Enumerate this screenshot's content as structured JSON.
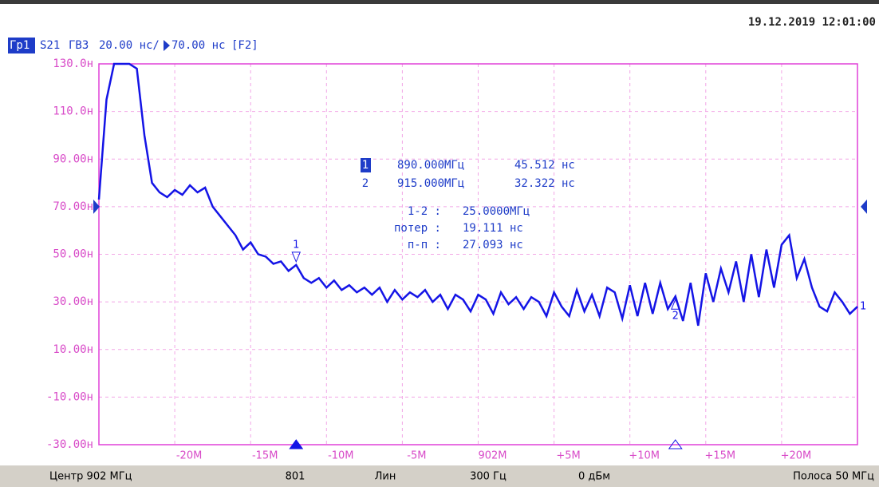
{
  "date": "19.12.2019 12:01:00",
  "header": {
    "trace": "Гр1",
    "parameter": "S21",
    "format": "ГВЗ",
    "scale": "20.00 нс/",
    "reference": "70.00 нс",
    "key": "[F2]"
  },
  "chart_data": {
    "type": "line",
    "xlim": [
      877,
      927
    ],
    "xticks": [
      {
        "value": 882,
        "label": "-20M"
      },
      {
        "value": 887,
        "label": "-15M"
      },
      {
        "value": 892,
        "label": "-10M"
      },
      {
        "value": 897,
        "label": "-5M"
      },
      {
        "value": 902,
        "label": "902M"
      },
      {
        "value": 907,
        "label": "+5M"
      },
      {
        "value": 912,
        "label": "+10M"
      },
      {
        "value": 917,
        "label": "+15M"
      },
      {
        "value": 922,
        "label": "+20M"
      }
    ],
    "ylim": [
      -30,
      130
    ],
    "yticks": [
      {
        "value": 130,
        "label": "130.0н"
      },
      {
        "value": 110,
        "label": "110.0н"
      },
      {
        "value": 90,
        "label": "90.00н"
      },
      {
        "value": 70,
        "label": "70.00н"
      },
      {
        "value": 50,
        "label": "50.00н"
      },
      {
        "value": 30,
        "label": "30.00н"
      },
      {
        "value": 10,
        "label": "10.00н"
      },
      {
        "value": -10,
        "label": "-10.00н"
      },
      {
        "value": -30,
        "label": "-30.00н"
      }
    ],
    "grid": true,
    "color": "#1414e6",
    "reference": 70,
    "channel": "1",
    "x": [
      877,
      877.5,
      878,
      878.5,
      879,
      879.5,
      880,
      880.5,
      881,
      881.5,
      882,
      882.5,
      883,
      883.5,
      884,
      884.5,
      885,
      885.5,
      886,
      886.5,
      887,
      887.5,
      888,
      888.5,
      889,
      889.5,
      890,
      890.5,
      891,
      891.5,
      892,
      892.5,
      893,
      893.5,
      894,
      894.5,
      895,
      895.5,
      896,
      896.5,
      897,
      897.5,
      898,
      898.5,
      899,
      899.5,
      900,
      900.5,
      901,
      901.5,
      902,
      902.5,
      903,
      903.5,
      904,
      904.5,
      905,
      905.5,
      906,
      906.5,
      907,
      907.5,
      908,
      908.5,
      909,
      909.5,
      910,
      910.5,
      911,
      911.5,
      912,
      912.5,
      913,
      913.5,
      914,
      914.5,
      915,
      915.5,
      916,
      916.5,
      917,
      917.5,
      918,
      918.5,
      919,
      919.5,
      920,
      920.5,
      921,
      921.5,
      922,
      922.5,
      923,
      923.5,
      924,
      924.5,
      925,
      925.5,
      926,
      926.5,
      927
    ],
    "values": [
      73,
      115,
      130,
      130,
      130,
      128,
      100,
      80,
      76,
      74,
      77,
      75,
      79,
      76,
      78,
      70,
      66,
      62,
      58,
      52,
      55,
      50,
      49,
      46,
      47,
      43,
      45.5,
      40,
      38,
      40,
      36,
      39,
      35,
      37,
      34,
      36,
      33,
      36,
      30,
      35,
      31,
      34,
      32,
      35,
      30,
      33,
      27,
      33,
      31,
      26,
      33,
      31,
      25,
      34,
      29,
      32,
      27,
      32,
      30,
      24,
      34,
      28,
      24,
      35,
      26,
      33,
      24,
      36,
      34,
      23,
      37,
      24,
      38,
      25,
      38,
      27,
      32.3,
      22,
      38,
      20,
      42,
      30,
      44,
      34,
      47,
      30,
      50,
      32,
      52,
      36,
      54,
      58,
      40,
      48,
      36,
      28,
      26,
      34,
      30,
      25,
      28
    ],
    "markers": [
      {
        "name": "1",
        "x": 890,
        "y": 45.512,
        "x_label": "890.000МГц",
        "y_label": "45.512 нс"
      },
      {
        "name": "2",
        "x": 915,
        "y": 32.322,
        "x_label": "915.000МГц",
        "y_label": "32.322 нс"
      }
    ],
    "statistics": [
      {
        "label": "1-2 :",
        "value": "25.0000МГц"
      },
      {
        "label": "потер :",
        "value": "19.111 нс"
      },
      {
        "label": "п-п :",
        "value": "27.093 нс"
      }
    ]
  },
  "status_bar": [
    "Центр 902 МГц",
    "801",
    "Лин",
    "300 Гц",
    "0 дБм",
    "Полоса 50 МГц"
  ]
}
